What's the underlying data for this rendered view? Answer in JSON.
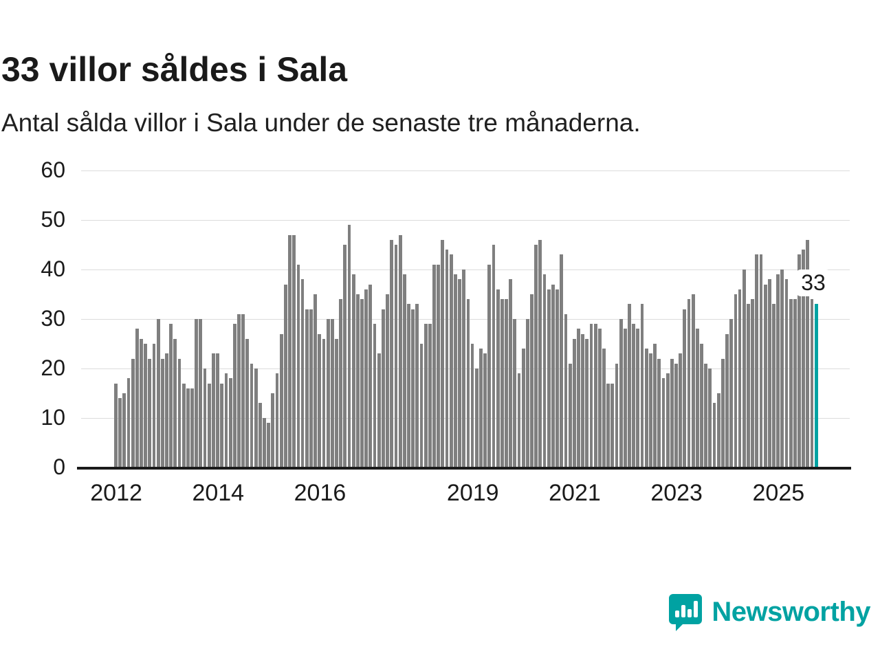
{
  "header": {
    "title": "33 villor såldes i Sala",
    "subtitle": "Antal sålda villor i Sala under de senaste tre månaderna."
  },
  "chart_data": {
    "type": "bar",
    "title": "33 villor såldes i Sala",
    "subtitle": "Antal sålda villor i Sala under de senaste tre månaderna.",
    "xlabel": "",
    "ylabel": "",
    "ylim": [
      0,
      60
    ],
    "yticks": [
      0,
      10,
      20,
      30,
      40,
      50,
      60
    ],
    "grid": true,
    "x_unit": "month",
    "x_start": "2012-01",
    "x_tick_labels": [
      "2012",
      "2014",
      "2016",
      "2019",
      "2021",
      "2023",
      "2025"
    ],
    "x_tick_month_index": [
      0,
      24,
      48,
      84,
      108,
      132,
      156
    ],
    "bar_color": "#7f7f7f",
    "highlight_color": "#00a2a2",
    "highlight_last": true,
    "last_value_label": "33",
    "values": [
      17,
      14,
      15,
      18,
      22,
      28,
      26,
      25,
      22,
      25,
      30,
      22,
      23,
      29,
      26,
      22,
      17,
      16,
      16,
      30,
      30,
      20,
      17,
      23,
      23,
      17,
      19,
      18,
      29,
      31,
      31,
      26,
      21,
      20,
      13,
      10,
      9,
      15,
      19,
      27,
      37,
      47,
      47,
      41,
      38,
      32,
      32,
      35,
      27,
      26,
      30,
      30,
      26,
      34,
      45,
      49,
      39,
      35,
      34,
      36,
      37,
      29,
      23,
      32,
      35,
      46,
      45,
      47,
      39,
      33,
      32,
      33,
      25,
      29,
      29,
      41,
      41,
      46,
      44,
      43,
      39,
      38,
      40,
      34,
      25,
      20,
      24,
      23,
      41,
      45,
      36,
      34,
      34,
      38,
      30,
      19,
      24,
      30,
      35,
      45,
      46,
      39,
      36,
      37,
      36,
      43,
      31,
      21,
      26,
      28,
      27,
      26,
      29,
      29,
      28,
      24,
      17,
      17,
      21,
      30,
      28,
      33,
      29,
      28,
      33,
      24,
      23,
      25,
      22,
      18,
      19,
      22,
      21,
      23,
      32,
      34,
      35,
      28,
      25,
      21,
      20,
      13,
      15,
      22,
      27,
      30,
      35,
      36,
      40,
      33,
      34,
      43,
      43,
      37,
      38,
      33,
      39,
      40,
      38,
      34,
      34,
      43,
      44,
      46,
      34,
      33
    ]
  },
  "branding": {
    "name": "Newsworthy",
    "color": "#00a2a2",
    "icon": "bar-chart-pin-icon"
  }
}
